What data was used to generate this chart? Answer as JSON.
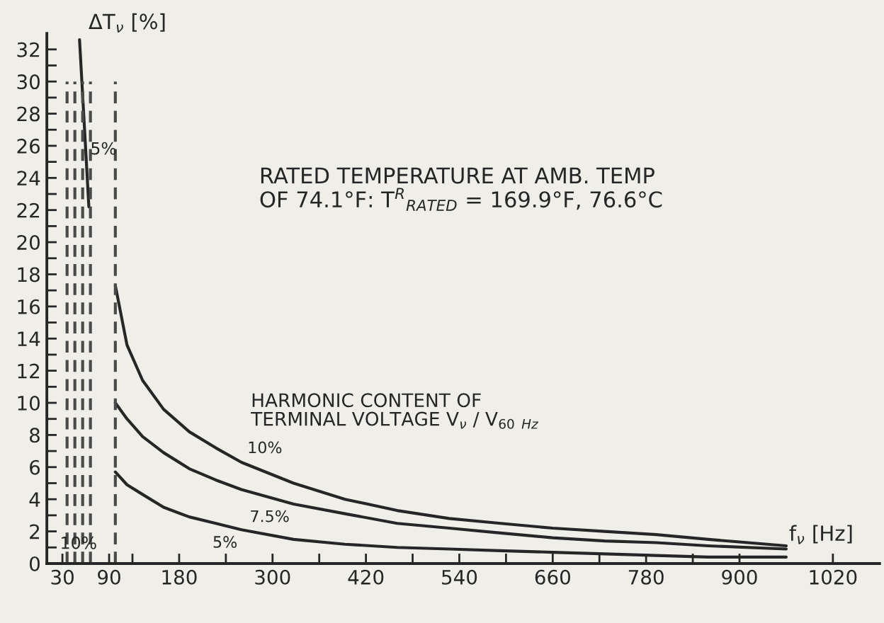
{
  "chart_data": {
    "type": "line",
    "xlabel": "f$_{ν}$ [Hz]",
    "ylabel": "ΔT$_{ν}$ [%]",
    "annotations": [
      "RATED TEMPERATURE AT AMB. TEMP\nOF 74.1°F: T$^{R}$$_{RATED}$ = 169.9°F, 76.6°C",
      "HARMONIC CONTENT OF\nTERMINAL VOLTAGE V$_{ν}$ / V$_{60}$ $_{Hz}$",
      "5%",
      "10%"
    ],
    "x": [
      98,
      113,
      133,
      160,
      193,
      227,
      260,
      327,
      393,
      460,
      527,
      593,
      660,
      727,
      793,
      860,
      960
    ],
    "series": [
      {
        "name": "10%",
        "color": "#262626",
        "values": [
          17.3,
          13.6,
          11.4,
          9.6,
          8.2,
          7.2,
          6.3,
          5.0,
          4.0,
          3.3,
          2.8,
          2.5,
          2.2,
          2.0,
          1.8,
          1.5,
          1.1
        ]
      },
      {
        "name": "7.5%",
        "color": "#262626",
        "values": [
          10.0,
          9.0,
          7.9,
          6.9,
          5.9,
          5.2,
          4.6,
          3.7,
          3.1,
          2.5,
          2.2,
          1.9,
          1.6,
          1.4,
          1.3,
          1.1,
          0.9
        ]
      },
      {
        "name": "5%",
        "color": "#262626",
        "values": [
          5.7,
          4.9,
          4.3,
          3.5,
          2.9,
          2.5,
          2.1,
          1.5,
          1.2,
          1.0,
          0.9,
          0.8,
          0.7,
          0.6,
          0.5,
          0.4,
          0.4
        ]
      },
      {
        "type": "line",
        "color": "#262626",
        "x": [
          52,
          64
        ],
        "values": [
          32.6,
          22.2
        ]
      },
      {
        "type": "line",
        "line_style": "dashed",
        "color": "#4a4a4a",
        "x": [
          36,
          36
        ],
        "values": [
          0,
          30
        ]
      },
      {
        "type": "line",
        "line_style": "dashed",
        "color": "#4a4a4a",
        "x": [
          46,
          46
        ],
        "values": [
          0,
          30
        ]
      },
      {
        "type": "line",
        "line_style": "dashed",
        "color": "#4a4a4a",
        "x": [
          56,
          56
        ],
        "values": [
          0,
          30
        ]
      },
      {
        "type": "line",
        "line_style": "dashed",
        "color": "#4a4a4a",
        "x": [
          66,
          66
        ],
        "values": [
          0,
          30
        ]
      },
      {
        "type": "line",
        "line_style": "dashed",
        "color": "#4a4a4a",
        "x": [
          98,
          98
        ],
        "values": [
          0,
          30
        ]
      }
    ],
    "xlim": [
      10,
      1080
    ],
    "ylim": [
      0,
      33
    ],
    "xticks": [
      30,
      90,
      {
        "value": 120,
        "label": null
      },
      180,
      {
        "value": 240,
        "label": null
      },
      300,
      {
        "value": 360,
        "label": null
      },
      420,
      {
        "value": 480,
        "label": null
      },
      540,
      {
        "value": 600,
        "label": null
      },
      660,
      {
        "value": 720,
        "label": null
      },
      780,
      {
        "value": 840,
        "label": null
      },
      900,
      1020
    ],
    "yticks": [
      0,
      {
        "value": 1,
        "label": null
      },
      2,
      {
        "value": 3,
        "label": null
      },
      4,
      {
        "value": 5,
        "label": null
      },
      6,
      {
        "value": 7,
        "label": null
      },
      8,
      {
        "value": 9,
        "label": null
      },
      10,
      {
        "value": 11,
        "label": null
      },
      12,
      {
        "value": 13,
        "label": null
      },
      14,
      {
        "value": 15,
        "label": null
      },
      16,
      {
        "value": 17,
        "label": null
      },
      18,
      {
        "value": 19,
        "label": null
      },
      20,
      {
        "value": 21,
        "label": null
      },
      22,
      {
        "value": 23,
        "label": null
      },
      24,
      {
        "value": 25,
        "label": null
      },
      26,
      {
        "value": 27,
        "label": null
      },
      28,
      {
        "value": 29,
        "label": null
      },
      30,
      {
        "value": 31,
        "label": null
      },
      32
    ],
    "grid": false,
    "legend": false,
    "marker": "none",
    "line_style": "solid"
  }
}
